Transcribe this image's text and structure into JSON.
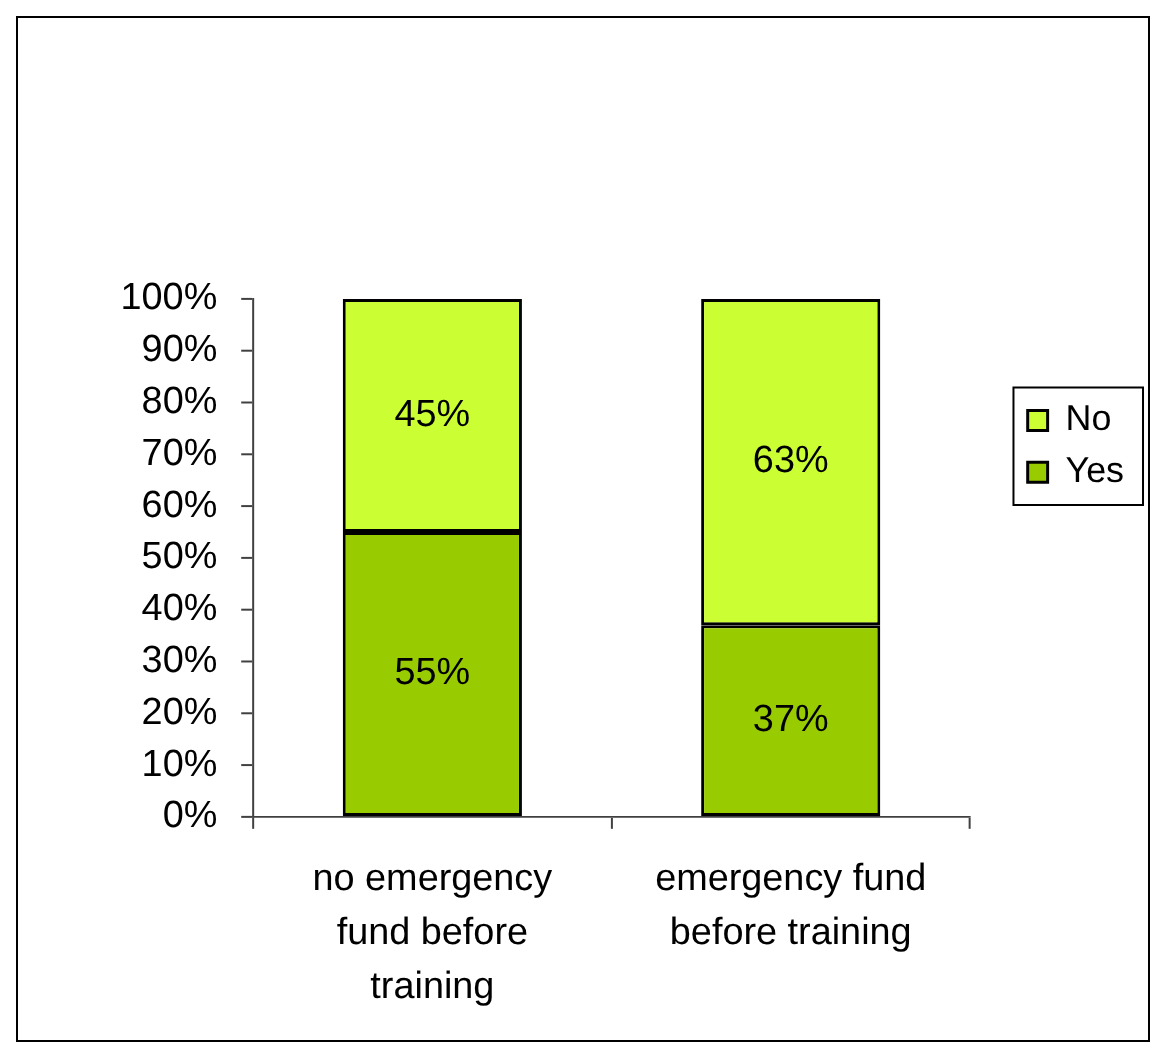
{
  "chart_data": {
    "type": "bar",
    "categories": [
      "no emergency fund before training",
      "emergency fund before training"
    ],
    "stacked": true,
    "ylim": [
      0,
      100
    ],
    "yticks": [
      {
        "value": 0,
        "label": "0%"
      },
      {
        "value": 10,
        "label": "10%"
      },
      {
        "value": 20,
        "label": "20%"
      },
      {
        "value": 30,
        "label": "30%"
      },
      {
        "value": 40,
        "label": "40%"
      },
      {
        "value": 50,
        "label": "50%"
      },
      {
        "value": 60,
        "label": "60%"
      },
      {
        "value": 70,
        "label": "70%"
      },
      {
        "value": 80,
        "label": "80%"
      },
      {
        "value": 90,
        "label": "90%"
      },
      {
        "value": 100,
        "label": "100%"
      }
    ],
    "legend": "right",
    "series": [
      {
        "name": "Yes",
        "color": "#99cc00",
        "values": [
          55,
          37
        ],
        "value_labels": [
          "55%",
          "37%"
        ]
      },
      {
        "name": "No",
        "color": "#ccff33",
        "values": [
          45,
          63
        ],
        "value_labels": [
          "45%",
          "63%"
        ]
      }
    ]
  }
}
